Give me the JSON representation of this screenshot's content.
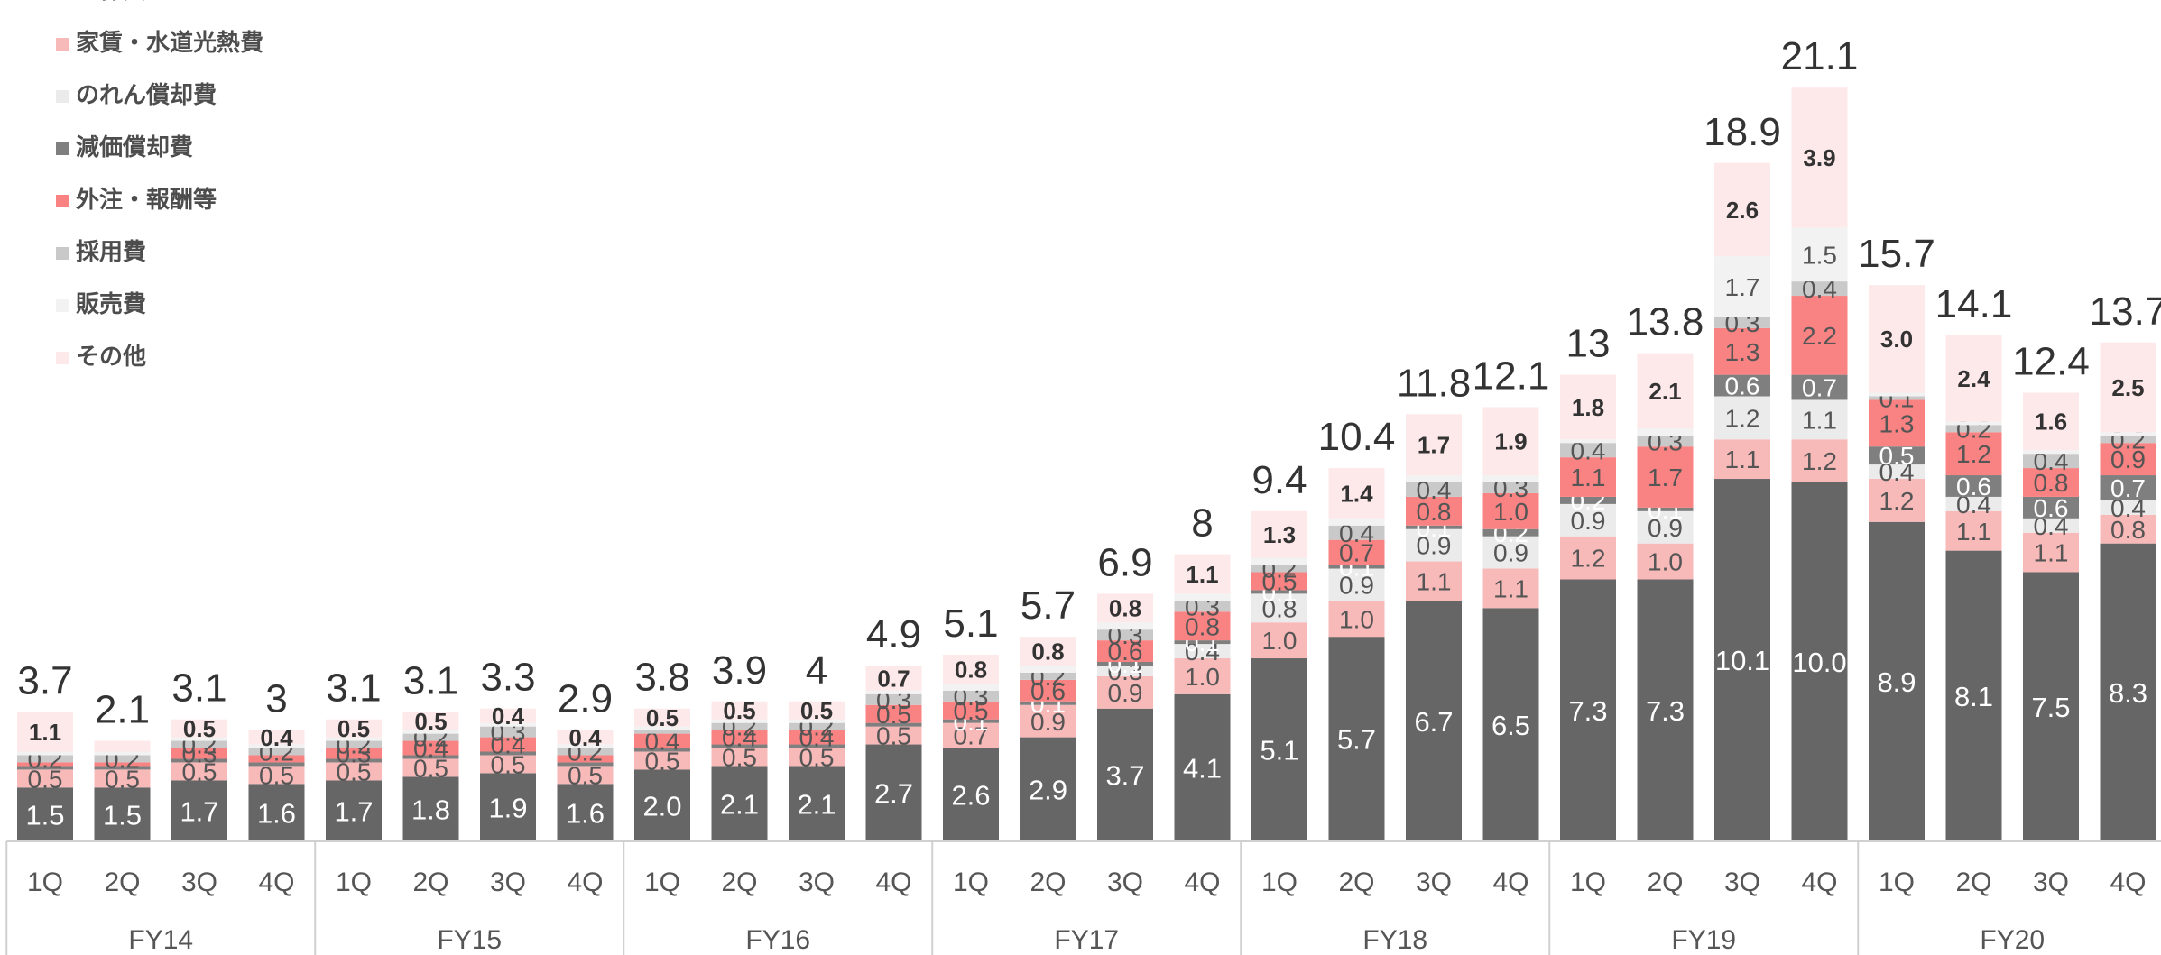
{
  "chart_data": {
    "type": "bar",
    "stacked": true,
    "legend_position": "top-left",
    "grid": false,
    "ylim": [
      0,
      23
    ],
    "groups": [
      "FY14",
      "FY15",
      "FY16",
      "FY17",
      "FY18",
      "FY19",
      "FY20"
    ],
    "quarters": [
      "1Q",
      "2Q",
      "3Q",
      "4Q"
    ],
    "categories": [
      "1Q",
      "2Q",
      "3Q",
      "4Q",
      "1Q",
      "2Q",
      "3Q",
      "4Q",
      "1Q",
      "2Q",
      "3Q",
      "4Q",
      "1Q",
      "2Q",
      "3Q",
      "4Q",
      "1Q",
      "2Q",
      "3Q",
      "4Q",
      "1Q",
      "2Q",
      "3Q",
      "4Q",
      "1Q",
      "2Q",
      "3Q",
      "4Q"
    ],
    "totals": [
      3.7,
      2.1,
      3.1,
      3.0,
      3.1,
      3.1,
      3.3,
      2.9,
      3.8,
      3.9,
      4.0,
      4.9,
      5.1,
      5.7,
      6.9,
      8.0,
      9.4,
      10.4,
      11.8,
      12.1,
      13.0,
      13.8,
      18.9,
      21.1,
      15.7,
      14.1,
      12.4,
      13.7
    ],
    "series": [
      {
        "name": "人件費",
        "color": "#666666",
        "values": [
          1.5,
          1.5,
          1.7,
          1.6,
          1.7,
          1.8,
          1.9,
          1.6,
          2.0,
          2.1,
          2.1,
          2.7,
          2.6,
          2.9,
          3.7,
          4.1,
          5.1,
          5.7,
          6.7,
          6.5,
          7.3,
          7.3,
          10.1,
          10.0,
          8.9,
          8.1,
          7.5,
          8.3
        ],
        "labels": [
          "1.5",
          "1.5",
          "1.7",
          "1.6",
          "1.7",
          "1.8",
          "1.9",
          "1.6",
          "2.0",
          "2.1",
          "2.1",
          "2.7",
          "2.6",
          "2.9",
          "3.7",
          "4.1",
          "5.1",
          "5.7",
          "6.7",
          "6.5",
          "7.3",
          "7.3",
          "10.1",
          "10.0",
          "8.9",
          "8.1",
          "7.5",
          "8.3"
        ]
      },
      {
        "name": "家賃・水道光熱費",
        "color": "#f8b9b9",
        "values": [
          0.5,
          0.5,
          0.5,
          0.5,
          0.5,
          0.5,
          0.5,
          0.5,
          0.5,
          0.5,
          0.5,
          0.5,
          0.7,
          0.9,
          0.9,
          1.0,
          1.0,
          1.0,
          1.1,
          1.1,
          1.2,
          1.0,
          1.1,
          1.2,
          1.2,
          1.1,
          1.1,
          0.8
        ],
        "labels": [
          "0.5",
          "0.5",
          "0.5",
          "0.5",
          "0.5",
          "0.5",
          "0.5",
          "0.5",
          "0.5",
          "0.5",
          "0.5",
          "0.5",
          "0.7",
          "0.9",
          "0.9",
          "1.0",
          "1.0",
          "1.0",
          "1.1",
          "1.1",
          "1.2",
          "1.0",
          "1.1",
          "1.2",
          "1.2",
          "1.1",
          "1.1",
          "0.8"
        ]
      },
      {
        "name": "のれん償却費",
        "color": "#ebebeb",
        "values": [
          0,
          0,
          0,
          0,
          0,
          0,
          0,
          0,
          0,
          0,
          0,
          0,
          0,
          0,
          0.3,
          0.4,
          0.8,
          0.9,
          0.9,
          0.9,
          0.9,
          0.9,
          1.2,
          1.1,
          0.4,
          0.4,
          0.4,
          0.4
        ],
        "labels": [
          "",
          "",
          "",
          "",
          "",
          "",
          "",
          "",
          "",
          "",
          "",
          "",
          "",
          "",
          "0.3",
          "0.4",
          "0.8",
          "0.9",
          "0.9",
          "0.9",
          "0.9",
          "0.9",
          "1.2",
          "1.1",
          "0.4",
          "0.4",
          "0.4",
          "0.4"
        ]
      },
      {
        "name": "減価償却費",
        "color": "#7f7f7f",
        "values": [
          0.1,
          0.1,
          0.1,
          0.1,
          0.1,
          0.1,
          0.1,
          0.1,
          0.1,
          0.1,
          0.1,
          0.1,
          0.1,
          0.1,
          0.1,
          0.1,
          0.1,
          0.1,
          0.1,
          0.2,
          0.2,
          0.1,
          0.6,
          0.7,
          0.5,
          0.6,
          0.6,
          0.7
        ],
        "labels": [
          "",
          "",
          "",
          "",
          "",
          "",
          "",
          "",
          "",
          "",
          "",
          "",
          "0.1",
          "0.1",
          "0.1",
          "0.1",
          "0.1",
          "0.1",
          "0.1",
          "0.2",
          "0.2",
          "0.1",
          "0.6",
          "0.7",
          "0.5",
          "0.6",
          "0.6",
          "0.7"
        ]
      },
      {
        "name": "外注・報酬等",
        "color": "#f98282",
        "values": [
          0.1,
          0.1,
          0.3,
          0.2,
          0.3,
          0.4,
          0.4,
          0.2,
          0.4,
          0.4,
          0.4,
          0.5,
          0.5,
          0.6,
          0.6,
          0.8,
          0.5,
          0.7,
          0.8,
          1.0,
          1.1,
          1.7,
          1.3,
          2.2,
          1.3,
          1.2,
          0.8,
          0.9
        ],
        "labels": [
          "",
          "",
          "0.3",
          "",
          "0.3",
          "0.4",
          "0.4",
          "",
          "0.4",
          "0.4",
          "0.4",
          "0.5",
          "0.5",
          "0.6",
          "0.6",
          "0.8",
          "0.5",
          "0.7",
          "0.8",
          "1.0",
          "1.1",
          "1.7",
          "1.3",
          "2.2",
          "1.3",
          "1.2",
          "0.8",
          "0.9"
        ]
      },
      {
        "name": "採用費",
        "color": "#c9c9c9",
        "values": [
          0.2,
          0.2,
          0.2,
          0.2,
          0.2,
          0.2,
          0.3,
          0.2,
          0.1,
          0.2,
          0.2,
          0.3,
          0.3,
          0.2,
          0.3,
          0.3,
          0.2,
          0.4,
          0.4,
          0.3,
          0.4,
          0.3,
          0.3,
          0.4,
          0.1,
          0.2,
          0.4,
          0.2
        ],
        "labels": [
          "0.2",
          "0.2",
          "0.2",
          "0.2",
          "0.2",
          "0.2",
          "0.3",
          "0.2",
          "",
          "0.2",
          "0.2",
          "0.3",
          "0.3",
          "0.2",
          "0.3",
          "0.3",
          "0.2",
          "0.4",
          "0.4",
          "0.3",
          "0.4",
          "0.3",
          "0.3",
          "0.4",
          "0.1",
          "0.2",
          "0.4",
          "0.2"
        ]
      },
      {
        "name": "販売費",
        "color": "#f2f2f2",
        "values": [
          0.1,
          0.1,
          0.1,
          0.1,
          0.1,
          0.1,
          0.1,
          0.1,
          0.1,
          0.1,
          0.1,
          0.1,
          0.2,
          0.2,
          0.2,
          0.2,
          0.2,
          0.2,
          0.2,
          0.2,
          0.1,
          0.2,
          1.7,
          1.5,
          0.1,
          0.1,
          0.1,
          0.1
        ],
        "labels": [
          "",
          "",
          "",
          "",
          "",
          "",
          "",
          "",
          "",
          "",
          "",
          "",
          "",
          "",
          "",
          "",
          "",
          "",
          "",
          "",
          "",
          "",
          "1.7",
          "1.5",
          "",
          "",
          "",
          ""
        ]
      },
      {
        "name": "その他",
        "color": "#fde8ea",
        "values": [
          1.1,
          0.3,
          0.5,
          0.4,
          0.5,
          0.5,
          0.4,
          0.4,
          0.5,
          0.5,
          0.5,
          0.7,
          0.8,
          0.8,
          0.8,
          1.1,
          1.3,
          1.4,
          1.7,
          1.9,
          1.8,
          2.1,
          2.6,
          3.9,
          3.0,
          2.4,
          1.6,
          2.5
        ],
        "labels": [
          "1.1",
          "",
          "0.5",
          "0.4",
          "0.5",
          "0.5",
          "0.4",
          "0.4",
          "0.5",
          "0.5",
          "0.5",
          "0.7",
          "0.8",
          "0.8",
          "0.8",
          "1.1",
          "1.3",
          "1.4",
          "1.7",
          "1.9",
          "1.8",
          "2.1",
          "2.6",
          "3.9",
          "3.0",
          "2.4",
          "1.6",
          "2.5"
        ]
      }
    ]
  },
  "legend": {
    "items": [
      {
        "label": "人件費",
        "color": "#666666"
      },
      {
        "label": "家賃・水道光熱費",
        "color": "#f8b9b9"
      },
      {
        "label": "のれん償却費",
        "color": "#ebebeb"
      },
      {
        "label": "減価償却費",
        "color": "#7f7f7f"
      },
      {
        "label": "外注・報酬等",
        "color": "#f98282"
      },
      {
        "label": "採用費",
        "color": "#c9c9c9"
      },
      {
        "label": "販売費",
        "color": "#f2f2f2"
      },
      {
        "label": "その他",
        "color": "#fde8ea"
      }
    ]
  }
}
